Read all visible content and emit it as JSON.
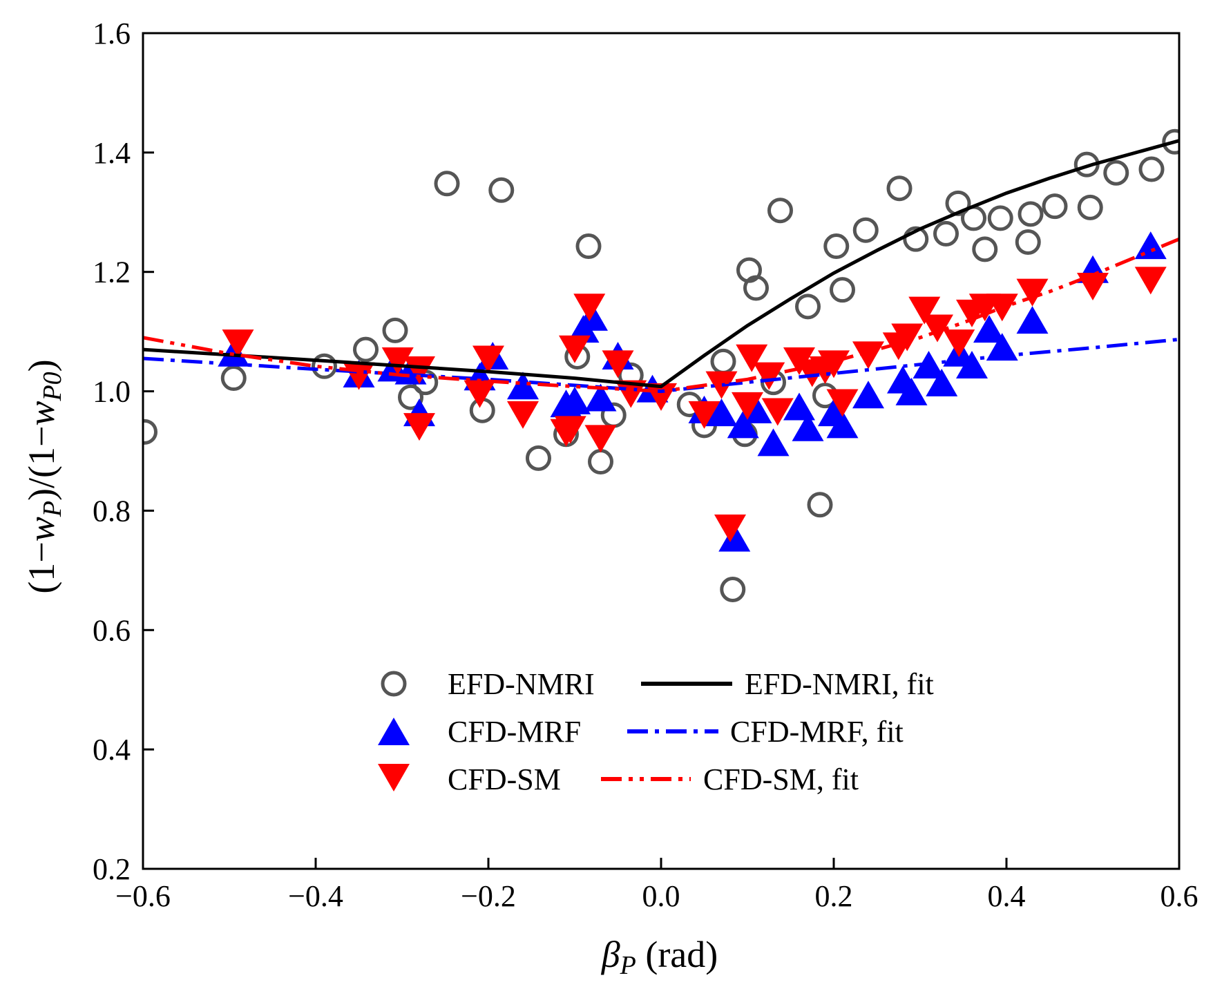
{
  "chart_data": {
    "type": "scatter",
    "xlim": [
      -0.6,
      0.6
    ],
    "ylim": [
      0.2,
      1.6
    ],
    "x_ticks": [
      -0.6,
      -0.4,
      -0.2,
      0.0,
      0.2,
      0.4,
      0.6
    ],
    "y_ticks": [
      0.2,
      0.4,
      0.6,
      0.8,
      1.0,
      1.2,
      1.4,
      1.6
    ],
    "x_tick_labels": [
      "−0.6",
      "−0.4",
      "−0.2",
      "0.0",
      "0.2",
      "0.4",
      "0.6"
    ],
    "y_tick_labels": [
      "0.2",
      "0.4",
      "0.6",
      "0.8",
      "1.0",
      "1.2",
      "1.4",
      "1.6"
    ],
    "xlabel": {
      "main": "β",
      "sub": "P",
      "rest": " (rad)"
    },
    "ylabel": {
      "p1": "(1−",
      "w1": "w",
      "s1": "P",
      "p2": ")/(1−",
      "w2": "w",
      "s2": "P0",
      "p3": ")"
    },
    "grid": false,
    "legend_position": "lower-center",
    "colors": {
      "efd": "#555555",
      "efd_fit": "#000000",
      "mrf": "#0000ff",
      "sm": "#ff0000"
    },
    "legend": [
      {
        "marker": "circle",
        "label": "EFD-NMRI",
        "line_label": "EFD-NMRI, fit"
      },
      {
        "marker": "triangle-up",
        "label": "CFD-MRF",
        "line_label": "CFD-MRF, fit"
      },
      {
        "marker": "triangle-down",
        "label": "CFD-SM",
        "line_label": "CFD-SM, fit"
      }
    ],
    "series": [
      {
        "name": "EFD-NMRI",
        "marker": "circle",
        "points": [
          [
            -0.598,
            0.932
          ],
          [
            -0.495,
            1.022
          ],
          [
            -0.39,
            1.042
          ],
          [
            -0.342,
            1.07
          ],
          [
            -0.308,
            1.102
          ],
          [
            -0.29,
            0.99
          ],
          [
            -0.273,
            1.015
          ],
          [
            -0.248,
            1.348
          ],
          [
            -0.207,
            0.968
          ],
          [
            -0.185,
            1.337
          ],
          [
            -0.142,
            0.888
          ],
          [
            -0.11,
            0.928
          ],
          [
            -0.097,
            1.058
          ],
          [
            -0.084,
            1.243
          ],
          [
            -0.07,
            0.882
          ],
          [
            -0.055,
            0.96
          ],
          [
            -0.035,
            1.027
          ],
          [
            0.033,
            0.978
          ],
          [
            0.05,
            0.943
          ],
          [
            0.072,
            1.05
          ],
          [
            0.083,
            0.668
          ],
          [
            0.097,
            0.928
          ],
          [
            0.102,
            1.203
          ],
          [
            0.11,
            1.173
          ],
          [
            0.13,
            1.015
          ],
          [
            0.138,
            1.303
          ],
          [
            0.17,
            1.142
          ],
          [
            0.184,
            0.81
          ],
          [
            0.19,
            0.993
          ],
          [
            0.203,
            1.243
          ],
          [
            0.21,
            1.17
          ],
          [
            0.237,
            1.27
          ],
          [
            0.276,
            1.34
          ],
          [
            0.295,
            1.255
          ],
          [
            0.33,
            1.264
          ],
          [
            0.344,
            1.315
          ],
          [
            0.362,
            1.29
          ],
          [
            0.375,
            1.238
          ],
          [
            0.393,
            1.29
          ],
          [
            0.425,
            1.25
          ],
          [
            0.428,
            1.297
          ],
          [
            0.456,
            1.31
          ],
          [
            0.493,
            1.38
          ],
          [
            0.497,
            1.308
          ],
          [
            0.527,
            1.366
          ],
          [
            0.568,
            1.372
          ],
          [
            0.595,
            1.418
          ]
        ]
      },
      {
        "name": "CFD-MRF",
        "marker": "triangle-up",
        "points": [
          [
            -0.495,
            1.06
          ],
          [
            -0.35,
            1.025
          ],
          [
            -0.31,
            1.035
          ],
          [
            -0.29,
            1.03
          ],
          [
            -0.28,
            0.96
          ],
          [
            -0.21,
            1.02
          ],
          [
            -0.195,
            1.055
          ],
          [
            -0.16,
            1.005
          ],
          [
            -0.11,
            0.975
          ],
          [
            -0.1,
            0.98
          ],
          [
            -0.09,
            1.1
          ],
          [
            -0.08,
            1.12
          ],
          [
            -0.07,
            0.985
          ],
          [
            -0.05,
            1.055
          ],
          [
            -0.01,
            1.0
          ],
          [
            0.05,
            0.965
          ],
          [
            0.07,
            0.96
          ],
          [
            0.085,
            0.75
          ],
          [
            0.095,
            0.94
          ],
          [
            0.11,
            0.965
          ],
          [
            0.13,
            0.91
          ],
          [
            0.16,
            0.97
          ],
          [
            0.17,
            0.935
          ],
          [
            0.2,
            0.96
          ],
          [
            0.21,
            0.94
          ],
          [
            0.24,
            0.99
          ],
          [
            0.28,
            1.015
          ],
          [
            0.29,
            0.995
          ],
          [
            0.31,
            1.04
          ],
          [
            0.325,
            1.01
          ],
          [
            0.345,
            1.06
          ],
          [
            0.36,
            1.04
          ],
          [
            0.38,
            1.1
          ],
          [
            0.395,
            1.07
          ],
          [
            0.43,
            1.115
          ],
          [
            0.5,
            1.2
          ],
          [
            0.567,
            1.24
          ]
        ]
      },
      {
        "name": "CFD-SM",
        "marker": "triangle-down",
        "points": [
          [
            -0.49,
            1.085
          ],
          [
            -0.35,
            1.03
          ],
          [
            -0.305,
            1.055
          ],
          [
            -0.28,
            1.04
          ],
          [
            -0.28,
            0.945
          ],
          [
            -0.21,
            1.0
          ],
          [
            -0.2,
            1.058
          ],
          [
            -0.16,
            0.965
          ],
          [
            -0.11,
            0.935
          ],
          [
            -0.105,
            0.94
          ],
          [
            -0.1,
            1.075
          ],
          [
            -0.083,
            1.145
          ],
          [
            -0.07,
            0.925
          ],
          [
            -0.05,
            1.05
          ],
          [
            -0.035,
            1.0
          ],
          [
            0.0,
            0.995
          ],
          [
            0.05,
            0.965
          ],
          [
            0.07,
            1.015
          ],
          [
            0.08,
            0.775
          ],
          [
            0.1,
            0.98
          ],
          [
            0.105,
            1.06
          ],
          [
            0.125,
            1.03
          ],
          [
            0.135,
            0.97
          ],
          [
            0.16,
            1.055
          ],
          [
            0.175,
            1.035
          ],
          [
            0.19,
            1.04
          ],
          [
            0.2,
            1.05
          ],
          [
            0.21,
            0.985
          ],
          [
            0.24,
            1.065
          ],
          [
            0.275,
            1.08
          ],
          [
            0.285,
            1.095
          ],
          [
            0.305,
            1.14
          ],
          [
            0.32,
            1.11
          ],
          [
            0.345,
            1.085
          ],
          [
            0.36,
            1.135
          ],
          [
            0.375,
            1.145
          ],
          [
            0.395,
            1.145
          ],
          [
            0.43,
            1.17
          ],
          [
            0.5,
            1.18
          ],
          [
            0.567,
            1.19
          ]
        ]
      }
    ],
    "fit_lines": [
      {
        "name": "EFD-NMRI, fit",
        "style": "solid",
        "points": [
          [
            -0.6,
            1.07
          ],
          [
            -0.4,
            1.052
          ],
          [
            -0.2,
            1.033
          ],
          [
            -0.1,
            1.022
          ],
          [
            0.0,
            1.008
          ],
          [
            0.05,
            1.06
          ],
          [
            0.1,
            1.11
          ],
          [
            0.15,
            1.155
          ],
          [
            0.2,
            1.198
          ],
          [
            0.25,
            1.236
          ],
          [
            0.3,
            1.272
          ],
          [
            0.35,
            1.303
          ],
          [
            0.4,
            1.332
          ],
          [
            0.45,
            1.357
          ],
          [
            0.5,
            1.38
          ],
          [
            0.55,
            1.4
          ],
          [
            0.6,
            1.42
          ]
        ]
      },
      {
        "name": "CFD-MRF, fit",
        "style": "dash-dot",
        "points": [
          [
            -0.6,
            1.055
          ],
          [
            -0.4,
            1.037
          ],
          [
            -0.2,
            1.02
          ],
          [
            0.0,
            1.0
          ],
          [
            0.1,
            1.015
          ],
          [
            0.2,
            1.03
          ],
          [
            0.3,
            1.045
          ],
          [
            0.4,
            1.06
          ],
          [
            0.5,
            1.073
          ],
          [
            0.6,
            1.087
          ]
        ]
      },
      {
        "name": "CFD-SM, fit",
        "style": "dash-dot-dot",
        "points": [
          [
            -0.6,
            1.09
          ],
          [
            -0.5,
            1.063
          ],
          [
            -0.4,
            1.042
          ],
          [
            -0.3,
            1.027
          ],
          [
            -0.2,
            1.017
          ],
          [
            -0.1,
            1.008
          ],
          [
            0.0,
            1.0
          ],
          [
            0.1,
            1.02
          ],
          [
            0.2,
            1.05
          ],
          [
            0.3,
            1.09
          ],
          [
            0.35,
            1.115
          ],
          [
            0.4,
            1.143
          ],
          [
            0.45,
            1.167
          ],
          [
            0.5,
            1.195
          ],
          [
            0.55,
            1.225
          ],
          [
            0.6,
            1.255
          ]
        ]
      }
    ]
  }
}
